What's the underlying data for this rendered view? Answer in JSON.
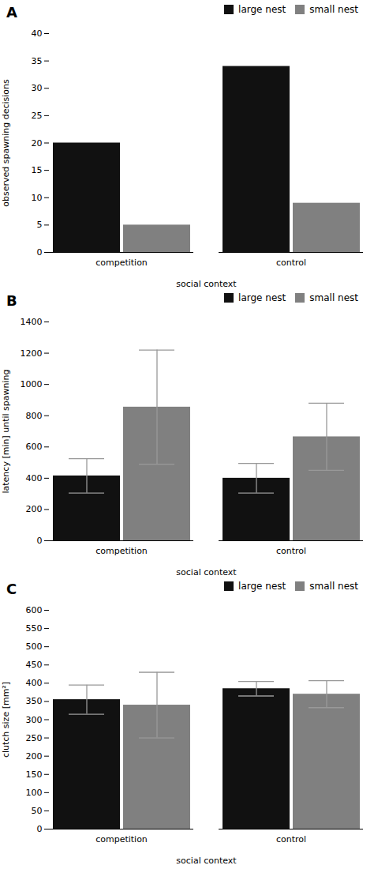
{
  "chart_data": [
    {
      "type": "bar",
      "title": "A",
      "categories": [
        "competition",
        "control"
      ],
      "series": [
        {
          "name": "large nest",
          "color": "#111111",
          "values": [
            20,
            34
          ]
        },
        {
          "name": "small nest",
          "color": "#808080",
          "values": [
            5,
            9
          ]
        }
      ],
      "xlabel": "social context",
      "ylabel": "observed spawning decisions",
      "ylim": [
        0,
        40
      ],
      "yticks": [
        0,
        5,
        10,
        15,
        20,
        25,
        30,
        35,
        40
      ],
      "grid": false,
      "legend": "upper right"
    },
    {
      "type": "bar",
      "title": "B",
      "categories": [
        "competition",
        "control"
      ],
      "series": [
        {
          "name": "large nest",
          "color": "#111111",
          "values": [
            415,
            400
          ],
          "errors": [
            110,
            95
          ]
        },
        {
          "name": "small nest",
          "color": "#808080",
          "values": [
            855,
            665
          ],
          "errors": [
            365,
            215
          ]
        }
      ],
      "xlabel": "social context",
      "ylabel": "latency [min] until spawning",
      "ylim": [
        0,
        1400
      ],
      "yticks": [
        0,
        200,
        400,
        600,
        800,
        1000,
        1200,
        1400
      ],
      "grid": false,
      "legend": "upper right"
    },
    {
      "type": "bar",
      "title": "C",
      "categories": [
        "competition",
        "control"
      ],
      "series": [
        {
          "name": "large nest",
          "color": "#111111",
          "values": [
            355,
            385
          ],
          "errors": [
            40,
            20
          ]
        },
        {
          "name": "small nest",
          "color": "#808080",
          "values": [
            340,
            370
          ],
          "errors": [
            90,
            37
          ]
        }
      ],
      "xlabel": "social context",
      "ylabel": "clutch size [mm²]",
      "ylim": [
        0,
        600
      ],
      "yticks": [
        0,
        50,
        100,
        150,
        200,
        250,
        300,
        350,
        400,
        450,
        500,
        550,
        600
      ],
      "grid": false,
      "legend": "upper right"
    }
  ]
}
